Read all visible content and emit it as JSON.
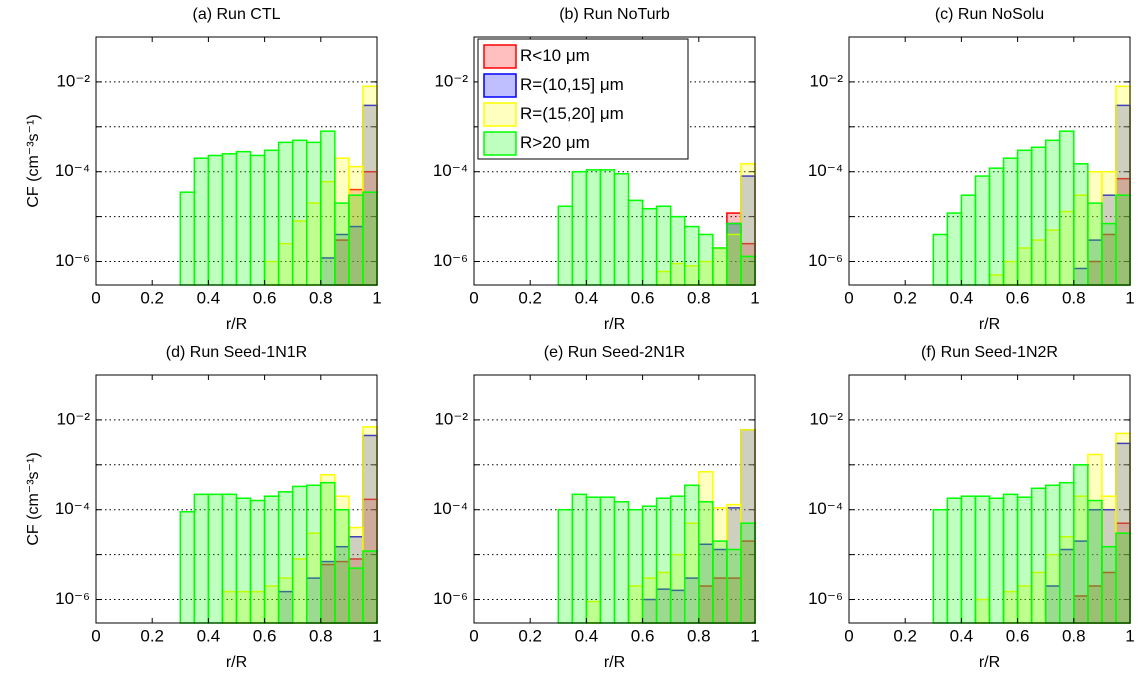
{
  "chart_data": [
    {
      "type": "histogram",
      "title": "(a) Run CTL",
      "xlabel": "r/R",
      "ylabel": "CF (cm⁻³s⁻¹)",
      "log_y": true,
      "bins": [
        0.3,
        0.35,
        0.4,
        0.45,
        0.5,
        0.55,
        0.6,
        0.65,
        0.7,
        0.75,
        0.8,
        0.85,
        0.9,
        0.95,
        1.0
      ],
      "series": [
        {
          "color": "#ff0000",
          "values": [
            null,
            null,
            null,
            null,
            null,
            null,
            null,
            null,
            null,
            null,
            null,
            3e-06,
            4e-05,
            0.0001
          ]
        },
        {
          "color": "#0000ff",
          "values": [
            null,
            null,
            null,
            null,
            null,
            null,
            null,
            null,
            null,
            null,
            1.2e-06,
            4e-06,
            6e-06,
            0.003
          ]
        },
        {
          "color": "#ffff00",
          "values": [
            null,
            null,
            null,
            null,
            null,
            null,
            1e-06,
            2.5e-06,
            8e-06,
            2e-05,
            6e-05,
            0.0002,
            0.00013,
            0.008
          ]
        },
        {
          "color": "#00ff00",
          "values": [
            3.5e-05,
            0.0002,
            0.00023,
            0.00025,
            0.00028,
            0.00023,
            0.0003,
            0.00045,
            0.0005,
            0.00045,
            0.0008,
            2e-05,
            3e-05,
            3.5e-05
          ]
        }
      ],
      "xlim": [
        0,
        1
      ],
      "xticks": [
        0,
        0.2,
        0.4,
        0.6,
        0.8,
        1
      ],
      "ylim": [
        3e-07,
        0.1
      ],
      "yticks": [
        {
          "value": 1e-06,
          "label": "10⁻⁶"
        },
        {
          "value": 0.0001,
          "label": "10⁻⁴"
        },
        {
          "value": 0.01,
          "label": "10⁻²"
        }
      ],
      "ygrid": [
        1e-06,
        1e-05,
        0.0001,
        0.001,
        0.01
      ]
    },
    {
      "type": "histogram",
      "title": "(b) Run NoTurb",
      "xlabel": "r/R",
      "log_y": true,
      "legend": "upper left",
      "bins": [
        0.3,
        0.35,
        0.4,
        0.45,
        0.5,
        0.55,
        0.6,
        0.65,
        0.7,
        0.75,
        0.8,
        0.85,
        0.9,
        0.95,
        1.0
      ],
      "series": [
        {
          "name": "R<10 μm",
          "color": "#ff0000",
          "values": [
            null,
            null,
            null,
            null,
            null,
            null,
            null,
            null,
            null,
            null,
            null,
            null,
            1.2e-05,
            2.5e-06
          ]
        },
        {
          "name": "R=(10,15]   μm",
          "color": "#0000ff",
          "values": [
            null,
            null,
            null,
            null,
            null,
            null,
            null,
            null,
            null,
            null,
            null,
            null,
            7e-06,
            8e-05
          ]
        },
        {
          "name": "R=(15,20]   μm",
          "color": "#ffff00",
          "values": [
            null,
            null,
            null,
            null,
            null,
            null,
            null,
            6e-07,
            9e-07,
            8e-07,
            1e-06,
            2e-06,
            4e-06,
            0.00015
          ]
        },
        {
          "name": "R>20 μm",
          "color": "#00ff00",
          "values": [
            1.7e-05,
            0.0001,
            0.00011,
            0.00011,
            9e-05,
            2.3e-05,
            1.5e-05,
            1.7e-05,
            1e-05,
            6e-06,
            4e-06,
            2e-06,
            7e-06,
            1.3e-06
          ]
        }
      ],
      "xlim": [
        0,
        1
      ],
      "xticks": [
        0,
        0.2,
        0.4,
        0.6,
        0.8,
        1
      ],
      "ylim": [
        3e-07,
        0.1
      ],
      "yticks": [
        {
          "value": 1e-06,
          "label": "10⁻⁶"
        },
        {
          "value": 0.0001,
          "label": "10⁻⁴"
        },
        {
          "value": 0.01,
          "label": "10⁻²"
        }
      ],
      "ygrid": [
        1e-06,
        1e-05,
        0.0001,
        0.001,
        0.01
      ]
    },
    {
      "type": "histogram",
      "title": "(c) Run NoSolu",
      "xlabel": "r/R",
      "log_y": true,
      "bins": [
        0.3,
        0.35,
        0.4,
        0.45,
        0.5,
        0.55,
        0.6,
        0.65,
        0.7,
        0.75,
        0.8,
        0.85,
        0.9,
        0.95,
        1.0
      ],
      "series": [
        {
          "color": "#ff0000",
          "values": [
            null,
            null,
            null,
            null,
            null,
            null,
            null,
            null,
            null,
            null,
            null,
            1e-06,
            4e-06,
            7e-05
          ]
        },
        {
          "color": "#0000ff",
          "values": [
            null,
            null,
            null,
            null,
            null,
            null,
            null,
            null,
            null,
            null,
            7e-07,
            3e-06,
            3e-05,
            0.003
          ]
        },
        {
          "color": "#ffff00",
          "values": [
            null,
            null,
            null,
            null,
            5e-07,
            1e-06,
            2e-06,
            3e-06,
            5e-06,
            1.3e-05,
            3e-05,
            0.0001,
            0.0001,
            0.008
          ]
        },
        {
          "color": "#00ff00",
          "values": [
            4e-06,
            1.2e-05,
            3e-05,
            8e-05,
            0.00012,
            0.0002,
            0.0003,
            0.00035,
            0.0005,
            0.0008,
            0.00015,
            2e-05,
            7e-06,
            3e-05
          ]
        }
      ],
      "xlim": [
        0,
        1
      ],
      "xticks": [
        0,
        0.2,
        0.4,
        0.6,
        0.8,
        1
      ],
      "ylim": [
        3e-07,
        0.1
      ],
      "yticks": [
        {
          "value": 1e-06,
          "label": "10⁻⁶"
        },
        {
          "value": 0.0001,
          "label": "10⁻⁴"
        },
        {
          "value": 0.01,
          "label": "10⁻²"
        }
      ],
      "ygrid": [
        1e-06,
        1e-05,
        0.0001,
        0.001,
        0.01
      ]
    },
    {
      "type": "histogram",
      "title": "(d) Run Seed-1N1R",
      "xlabel": "r/R",
      "ylabel": "CF (cm⁻³s⁻¹)",
      "log_y": true,
      "bins": [
        0.3,
        0.35,
        0.4,
        0.45,
        0.5,
        0.55,
        0.6,
        0.65,
        0.7,
        0.75,
        0.8,
        0.85,
        0.9,
        0.95,
        1.0
      ],
      "series": [
        {
          "color": "#ff0000",
          "values": [
            null,
            null,
            null,
            null,
            null,
            null,
            null,
            null,
            null,
            null,
            6e-06,
            7e-06,
            8e-06,
            0.00017
          ]
        },
        {
          "color": "#0000ff",
          "values": [
            null,
            null,
            null,
            null,
            null,
            null,
            null,
            1.5e-06,
            null,
            3e-06,
            7e-06,
            1.5e-05,
            2.5e-05,
            0.0045
          ]
        },
        {
          "color": "#ffff00",
          "values": [
            null,
            null,
            null,
            1.5e-06,
            1.5e-06,
            1.5e-06,
            2e-06,
            3e-06,
            8e-06,
            3e-05,
            0.0006,
            0.0002,
            4e-05,
            0.007
          ]
        },
        {
          "color": "#00ff00",
          "values": [
            9e-05,
            0.00022,
            0.00022,
            0.00022,
            0.00018,
            0.00016,
            0.0002,
            0.00025,
            0.00033,
            0.00035,
            0.0004,
            0.0001,
            5e-06,
            1.2e-05
          ]
        }
      ],
      "xlim": [
        0,
        1
      ],
      "xticks": [
        0,
        0.2,
        0.4,
        0.6,
        0.8,
        1
      ],
      "ylim": [
        3e-07,
        0.1
      ],
      "yticks": [
        {
          "value": 1e-06,
          "label": "10⁻⁶"
        },
        {
          "value": 0.0001,
          "label": "10⁻⁴"
        },
        {
          "value": 0.01,
          "label": "10⁻²"
        }
      ],
      "ygrid": [
        1e-06,
        1e-05,
        0.0001,
        0.001,
        0.01
      ]
    },
    {
      "type": "histogram",
      "title": "(e) Run Seed-2N1R",
      "xlabel": "r/R",
      "log_y": true,
      "bins": [
        0.3,
        0.35,
        0.4,
        0.45,
        0.5,
        0.55,
        0.6,
        0.65,
        0.7,
        0.75,
        0.8,
        0.85,
        0.9,
        0.95,
        1.0
      ],
      "series": [
        {
          "color": "#ff0000",
          "values": [
            null,
            null,
            null,
            null,
            null,
            null,
            null,
            null,
            null,
            null,
            2e-06,
            3e-06,
            3e-06,
            2e-05
          ]
        },
        {
          "color": "#0000ff",
          "values": [
            null,
            null,
            null,
            null,
            null,
            null,
            1e-06,
            1.7e-06,
            1.6e-06,
            3e-06,
            1.7e-05,
            1.3e-05,
            0.00011,
            0.006
          ]
        },
        {
          "color": "#ffff00",
          "values": [
            null,
            null,
            9e-07,
            null,
            null,
            2e-06,
            3e-06,
            4e-06,
            1e-05,
            5e-05,
            0.0007,
            0.00011,
            0.00013,
            0.006
          ]
        },
        {
          "color": "#00ff00",
          "values": [
            0.0001,
            0.00022,
            0.00019,
            0.00019,
            0.00015,
            0.0001,
            0.00012,
            0.00018,
            0.0002,
            0.00035,
            0.00015,
            2e-05,
            1.3e-05,
            5e-05
          ]
        }
      ],
      "xlim": [
        0,
        1
      ],
      "xticks": [
        0,
        0.2,
        0.4,
        0.6,
        0.8,
        1
      ],
      "ylim": [
        3e-07,
        0.1
      ],
      "yticks": [
        {
          "value": 1e-06,
          "label": "10⁻⁶"
        },
        {
          "value": 0.0001,
          "label": "10⁻⁴"
        },
        {
          "value": 0.01,
          "label": "10⁻²"
        }
      ],
      "ygrid": [
        1e-06,
        1e-05,
        0.0001,
        0.001,
        0.01
      ]
    },
    {
      "type": "histogram",
      "title": "(f) Run Seed-1N2R",
      "xlabel": "r/R",
      "log_y": true,
      "bins": [
        0.3,
        0.35,
        0.4,
        0.45,
        0.5,
        0.55,
        0.6,
        0.65,
        0.7,
        0.75,
        0.8,
        0.85,
        0.9,
        0.95,
        1.0
      ],
      "series": [
        {
          "color": "#ff0000",
          "values": [
            null,
            null,
            null,
            null,
            null,
            null,
            null,
            null,
            null,
            null,
            1.2e-06,
            2e-06,
            4e-06,
            5e-05
          ]
        },
        {
          "color": "#0000ff",
          "values": [
            null,
            null,
            null,
            null,
            null,
            null,
            null,
            null,
            2e-06,
            1.3e-05,
            2e-05,
            0.0001,
            0.0001,
            0.003
          ]
        },
        {
          "color": "#ffff00",
          "values": [
            null,
            null,
            null,
            1e-06,
            null,
            1.5e-06,
            2e-06,
            4e-06,
            1e-05,
            2.5e-05,
            0.0002,
            0.0017,
            0.0002,
            0.005
          ]
        },
        {
          "color": "#00ff00",
          "values": [
            0.0001,
            0.00018,
            0.0002,
            0.0002,
            0.00018,
            0.00022,
            0.00019,
            0.0003,
            0.00035,
            0.0004,
            0.001,
            0.00016,
            1.5e-05,
            3e-05
          ]
        }
      ],
      "xlim": [
        0,
        1
      ],
      "xticks": [
        0,
        0.2,
        0.4,
        0.6,
        0.8,
        1
      ],
      "ylim": [
        3e-07,
        0.1
      ],
      "yticks": [
        {
          "value": 1e-06,
          "label": "10⁻⁶"
        },
        {
          "value": 0.0001,
          "label": "10⁻⁴"
        },
        {
          "value": 0.01,
          "label": "10⁻²"
        }
      ],
      "ygrid": [
        1e-06,
        1e-05,
        0.0001,
        0.001,
        0.01
      ]
    }
  ]
}
